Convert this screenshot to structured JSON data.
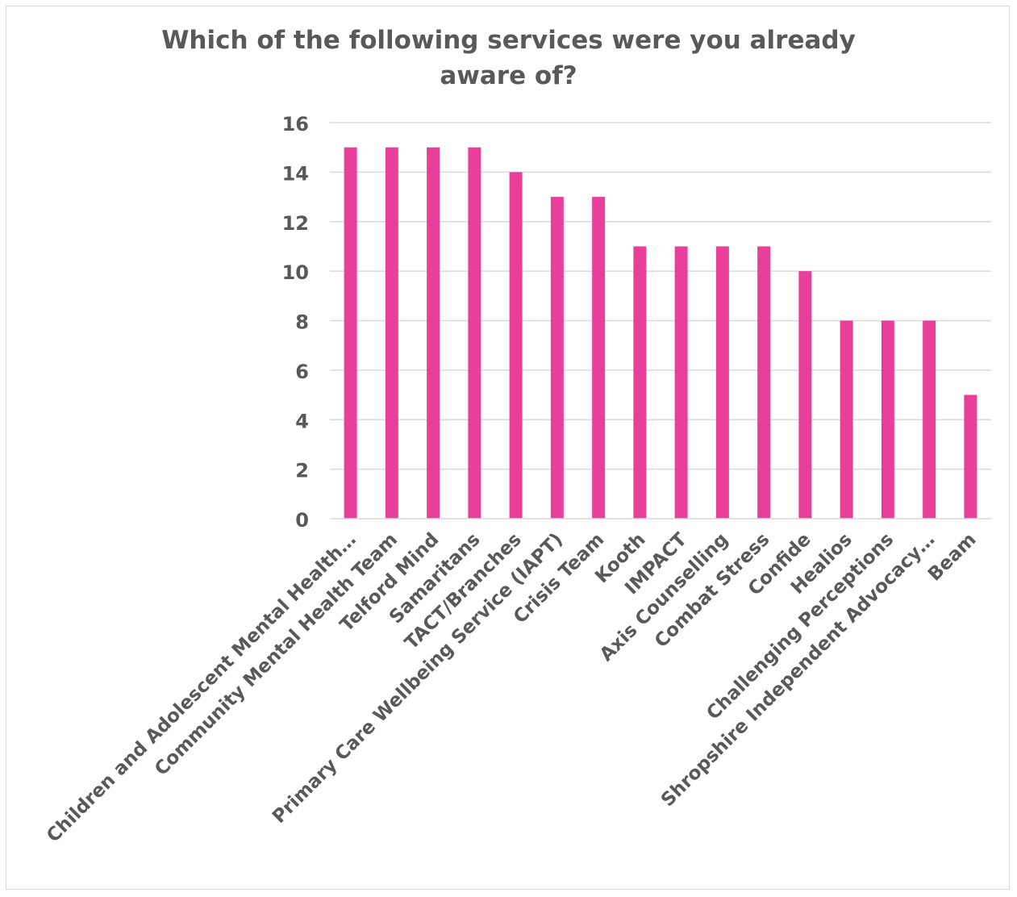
{
  "chart_data": {
    "type": "bar",
    "title": "Which of the following services were you already aware of?",
    "xlabel": "",
    "ylabel": "",
    "categories": [
      "Children and Adolescent Mental Health…",
      "Community Mental Health Team",
      "Telford Mind",
      "Samaritans",
      "TACT/Branches",
      "Primary Care Wellbeing Service (IAPT)",
      "Crisis Team",
      "Kooth",
      "IMPACT",
      "Axis Counselling",
      "Combat Stress",
      "Confide",
      "Healios",
      "Challenging Perceptions",
      "Shropshire Independent Advocacy…",
      "Beam"
    ],
    "values": [
      15,
      15,
      15,
      15,
      14,
      13,
      13,
      11,
      11,
      11,
      11,
      10,
      8,
      8,
      8,
      5
    ],
    "ylim": [
      0,
      16
    ],
    "yticks": [
      "0",
      "2",
      "4",
      "6",
      "8",
      "10",
      "12",
      "14",
      "16"
    ],
    "grid": true,
    "legend": "none",
    "bar_color": "#E8409A",
    "grid_color": "#d9d9d9",
    "text_color": "#595959"
  }
}
